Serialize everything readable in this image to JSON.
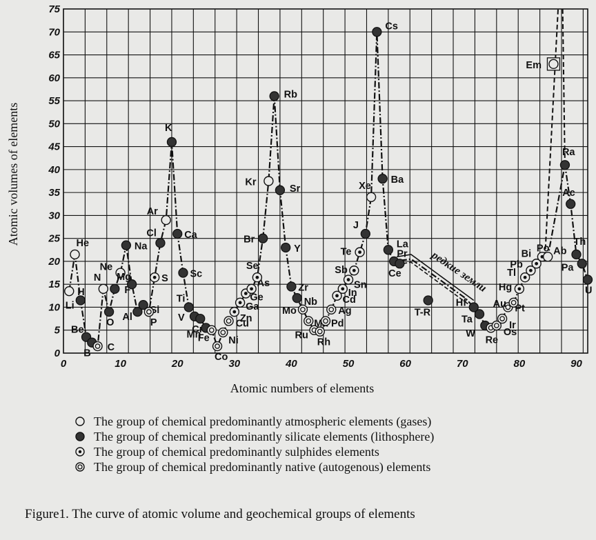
{
  "chart_data": {
    "type": "line",
    "ylabel": "Atomic volumes of elements",
    "xlabel": "Atomic numbers of elements",
    "xlim": [
      0,
      92
    ],
    "ylim": [
      0,
      75
    ],
    "x_ticks": [
      0,
      10,
      20,
      30,
      40,
      50,
      60,
      70,
      80,
      90
    ],
    "y_ticks": [
      0,
      5,
      10,
      15,
      20,
      25,
      30,
      35,
      40,
      45,
      50,
      55,
      60,
      65,
      70,
      75
    ],
    "grid": true,
    "colors": {
      "ink": "#111111",
      "paper": "#e9e9e7",
      "filled": "#333333"
    },
    "groups": {
      "gas": "The group of chemical predominantly atmospheric elements (gases)",
      "silicate": "The group of chemical predominantly silicate elements (lithosphere)",
      "sulphide": "The group of chemical predominantly sulphides elements",
      "native": "The group of chemical predominantly native (autogenous) elements"
    },
    "points": [
      {
        "label": "H",
        "x": 1,
        "y": 13.5,
        "group": "gas"
      },
      {
        "label": "He",
        "x": 2,
        "y": 21.5,
        "group": "gas"
      },
      {
        "label": "Li",
        "x": 3,
        "y": 11.5,
        "group": "silicate"
      },
      {
        "label": "Be",
        "x": 4,
        "y": 3.5,
        "group": "silicate"
      },
      {
        "label": "B",
        "x": 5,
        "y": 2.3,
        "group": "silicate"
      },
      {
        "label": "C",
        "x": 6,
        "y": 1.5,
        "group": "native"
      },
      {
        "label": "N",
        "x": 7,
        "y": 14,
        "group": "gas"
      },
      {
        "label": "O",
        "x": 8,
        "y": 9,
        "group": "silicate"
      },
      {
        "label": "F",
        "x": 9,
        "y": 14,
        "group": "silicate"
      },
      {
        "label": "Ne",
        "x": 10,
        "y": 17.5,
        "group": "gas"
      },
      {
        "label": "Na",
        "x": 11,
        "y": 23.5,
        "group": "silicate"
      },
      {
        "label": "Mg",
        "x": 12,
        "y": 15,
        "group": "silicate"
      },
      {
        "label": "Al",
        "x": 13,
        "y": 9,
        "group": "silicate"
      },
      {
        "label": "Si",
        "x": 14,
        "y": 10.5,
        "group": "silicate"
      },
      {
        "label": "P",
        "x": 15,
        "y": 9,
        "group": "native"
      },
      {
        "label": "S",
        "x": 16,
        "y": 16.5,
        "group": "sulphide"
      },
      {
        "label": "Cl",
        "x": 17,
        "y": 24,
        "group": "silicate"
      },
      {
        "label": "Ar",
        "x": 18,
        "y": 29,
        "group": "gas"
      },
      {
        "label": "K",
        "x": 19,
        "y": 46,
        "group": "silicate"
      },
      {
        "label": "Ca",
        "x": 20,
        "y": 26,
        "group": "silicate"
      },
      {
        "label": "Sc",
        "x": 21,
        "y": 17.5,
        "group": "silicate"
      },
      {
        "label": "Ti",
        "x": 22,
        "y": 10,
        "group": "silicate"
      },
      {
        "label": "V",
        "x": 23,
        "y": 8,
        "group": "silicate"
      },
      {
        "label": "Cr",
        "x": 24,
        "y": 7.5,
        "group": "silicate"
      },
      {
        "label": "Mn",
        "x": 25,
        "y": 5.5,
        "group": "silicate"
      },
      {
        "label": "Fe",
        "x": 26,
        "y": 5,
        "group": "native"
      },
      {
        "label": "Co",
        "x": 27,
        "y": 1.5,
        "group": "native"
      },
      {
        "label": "Ni",
        "x": 28,
        "y": 4.5,
        "group": "native"
      },
      {
        "label": "Cu",
        "x": 29,
        "y": 7,
        "group": "native"
      },
      {
        "label": "Zn",
        "x": 30,
        "y": 9,
        "group": "sulphide"
      },
      {
        "label": "Ga",
        "x": 31,
        "y": 11,
        "group": "sulphide"
      },
      {
        "label": "Ge",
        "x": 32,
        "y": 13,
        "group": "sulphide"
      },
      {
        "label": "As",
        "x": 33,
        "y": 14,
        "group": "sulphide"
      },
      {
        "label": "Se",
        "x": 34,
        "y": 16.5,
        "group": "sulphide"
      },
      {
        "label": "Br",
        "x": 35,
        "y": 25,
        "group": "silicate"
      },
      {
        "label": "Kr",
        "x": 36,
        "y": 37.5,
        "group": "gas"
      },
      {
        "label": "Rb",
        "x": 37,
        "y": 56,
        "group": "silicate"
      },
      {
        "label": "Sr",
        "x": 38,
        "y": 35.5,
        "group": "silicate"
      },
      {
        "label": "Y",
        "x": 39,
        "y": 23,
        "group": "silicate"
      },
      {
        "label": "Zr",
        "x": 40,
        "y": 14.5,
        "group": "silicate"
      },
      {
        "label": "Nb",
        "x": 41,
        "y": 12,
        "group": "silicate"
      },
      {
        "label": "Mo",
        "x": 42,
        "y": 9.5,
        "group": "native"
      },
      {
        "label": "Ma",
        "x": 43,
        "y": 7,
        "group": "native"
      },
      {
        "label": "Ru",
        "x": 44,
        "y": 5,
        "group": "native"
      },
      {
        "label": "Rh",
        "x": 45,
        "y": 4.7,
        "group": "native"
      },
      {
        "label": "Pd",
        "x": 46,
        "y": 7,
        "group": "native"
      },
      {
        "label": "Ag",
        "x": 47,
        "y": 9.5,
        "group": "native"
      },
      {
        "label": "Cd",
        "x": 48,
        "y": 12.5,
        "group": "sulphide"
      },
      {
        "label": "In",
        "x": 49,
        "y": 14,
        "group": "sulphide"
      },
      {
        "label": "Sn",
        "x": 50,
        "y": 16,
        "group": "sulphide"
      },
      {
        "label": "Sb",
        "x": 51,
        "y": 18,
        "group": "sulphide"
      },
      {
        "label": "Te",
        "x": 52,
        "y": 22,
        "group": "sulphide"
      },
      {
        "label": "J",
        "x": 53,
        "y": 26,
        "group": "silicate"
      },
      {
        "label": "Xe",
        "x": 54,
        "y": 34,
        "group": "gas"
      },
      {
        "label": "Cs",
        "x": 55,
        "y": 70,
        "group": "silicate"
      },
      {
        "label": "Ba",
        "x": 56,
        "y": 38,
        "group": "silicate"
      },
      {
        "label": "La",
        "x": 57,
        "y": 22.5,
        "group": "silicate"
      },
      {
        "label": "Ce",
        "x": 58,
        "y": 20,
        "group": "silicate"
      },
      {
        "label": "Pr",
        "x": 59,
        "y": 19.5,
        "group": "silicate"
      },
      {
        "label": "T-R",
        "x": 64,
        "y": 11.5,
        "group": "silicate"
      },
      {
        "label": "Hf",
        "x": 72,
        "y": 10,
        "group": "silicate"
      },
      {
        "label": "Ta",
        "x": 73,
        "y": 8.5,
        "group": "silicate"
      },
      {
        "label": "W",
        "x": 74,
        "y": 6,
        "group": "silicate"
      },
      {
        "label": "Re",
        "x": 75,
        "y": 5.5,
        "group": "native"
      },
      {
        "label": "Os",
        "x": 76,
        "y": 6,
        "group": "native"
      },
      {
        "label": "Ir",
        "x": 77,
        "y": 7.5,
        "group": "native"
      },
      {
        "label": "Pt",
        "x": 78,
        "y": 10,
        "group": "native"
      },
      {
        "label": "Au",
        "x": 79,
        "y": 11,
        "group": "native"
      },
      {
        "label": "Hg",
        "x": 80,
        "y": 14,
        "group": "sulphide"
      },
      {
        "label": "Tl",
        "x": 81,
        "y": 16.5,
        "group": "sulphide"
      },
      {
        "label": "Pb",
        "x": 82,
        "y": 18,
        "group": "sulphide"
      },
      {
        "label": "Bi",
        "x": 83,
        "y": 19.5,
        "group": "sulphide"
      },
      {
        "label": "Po",
        "x": 84,
        "y": 21,
        "group": "sulphide"
      },
      {
        "label": "Ab",
        "x": 85,
        "y": 21,
        "group": "gas"
      },
      {
        "label": "Em",
        "x": 86,
        "y": 63,
        "group": "gas"
      },
      {
        "label": "Ra",
        "x": 88,
        "y": 41,
        "group": "silicate"
      },
      {
        "label": "Ac",
        "x": 89,
        "y": 32.5,
        "group": "silicate"
      },
      {
        "label": "Th",
        "x": 90,
        "y": 21.5,
        "group": "silicate"
      },
      {
        "label": "Pa",
        "x": 91,
        "y": 19.5,
        "group": "silicate"
      },
      {
        "label": "U",
        "x": 92,
        "y": 16,
        "group": "silicate"
      }
    ],
    "annotation": "редкие земли"
  },
  "caption": "Figure1. The curve of atomic volume and geochemical groups of elements"
}
